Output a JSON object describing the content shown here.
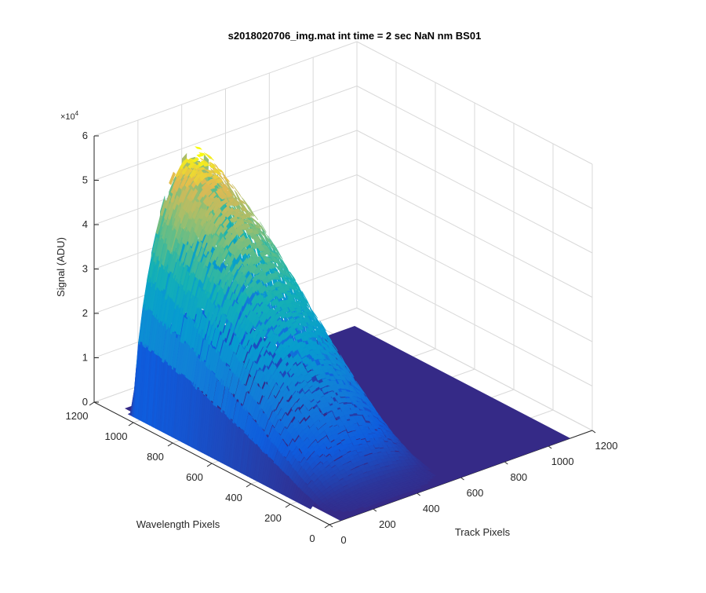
{
  "chart_data": {
    "type": "surface",
    "title": "s2018020706_img.mat int time = 2 sec  NaN nm BS01",
    "xlabel": "Track Pixels",
    "ylabel": "Wavelength Pixels",
    "zlabel": "Signal (ADU)",
    "z_exponent_label": "×10",
    "z_exponent_power": "4",
    "xlim": [
      0,
      1200
    ],
    "ylim": [
      0,
      1200
    ],
    "zlim": [
      0,
      60000
    ],
    "x_ticks": [
      "0",
      "200",
      "400",
      "600",
      "800",
      "1000",
      "1200"
    ],
    "y_ticks": [
      "0",
      "200",
      "400",
      "600",
      "800",
      "1000",
      "1200"
    ],
    "z_ticks": [
      "0",
      "1",
      "2",
      "3",
      "4",
      "5",
      "6"
    ],
    "grid": true,
    "colormap": "parula",
    "surface_extent": {
      "x": [
        50,
        1100
      ],
      "y": [
        0,
        1100
      ]
    },
    "ridge": {
      "track_start": 30,
      "track_end": 560,
      "profile": [
        {
          "wavelength": 0,
          "peak": 500
        },
        {
          "wavelength": 100,
          "peak": 2000
        },
        {
          "wavelength": 200,
          "peak": 8000
        },
        {
          "wavelength": 300,
          "peak": 15000
        },
        {
          "wavelength": 400,
          "peak": 22000
        },
        {
          "wavelength": 500,
          "peak": 29000
        },
        {
          "wavelength": 600,
          "peak": 35000
        },
        {
          "wavelength": 700,
          "peak": 41000
        },
        {
          "wavelength": 800,
          "peak": 46000
        },
        {
          "wavelength": 900,
          "peak": 50000
        },
        {
          "wavelength": 980,
          "peak": 53000
        },
        {
          "wavelength": 1030,
          "peak": 54000
        },
        {
          "wavelength": 1060,
          "peak": 500
        }
      ]
    },
    "colors": {
      "base": "#352a87",
      "grid": "#d9d9d9",
      "axis": "#262626"
    }
  }
}
